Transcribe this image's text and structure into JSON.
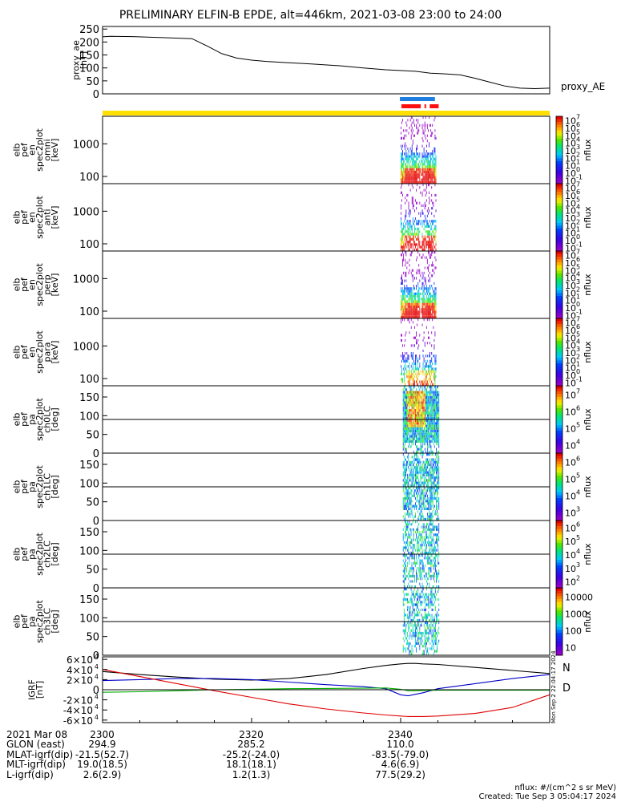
{
  "title": "PRELIMINARY ELFIN-B EPDE, alt=446km, 2021-03-08 23:00 to 24:00",
  "colors": {
    "ae_line": "#000000",
    "bar_yellow": "#ffe000",
    "bar_blue": "#1f7fe0",
    "bar_red": "#ff1010",
    "bx": "#0000c8",
    "by": "#00b000",
    "bz": "#e00000",
    "bt": "#000000"
  },
  "chart_data": [
    {
      "id": "proxy_ae",
      "type": "line",
      "ylabel_lines": [
        "proxy_ae",
        "[nT]"
      ],
      "series_label": "proxy_AE",
      "ylim": [
        0,
        260
      ],
      "yticks": [
        "0",
        "50",
        "100",
        "150",
        "200",
        "250"
      ],
      "x_minutes": [
        0,
        1,
        4,
        8,
        12,
        14,
        16,
        18,
        20,
        22,
        25,
        28,
        32,
        35,
        38,
        42,
        44,
        46,
        48,
        50,
        52,
        54,
        56,
        58,
        60
      ],
      "values": [
        220,
        222,
        221,
        217,
        213,
        185,
        155,
        138,
        130,
        125,
        120,
        115,
        108,
        100,
        93,
        87,
        80,
        77,
        73,
        60,
        45,
        30,
        22,
        20,
        22
      ]
    },
    {
      "id": "science_bars",
      "type": "bar",
      "yellow_span_minutes": [
        0,
        60
      ],
      "blue_span_minutes": [
        39.9,
        44.6
      ],
      "red_spans_minutes": [
        [
          40.1,
          42.7
        ],
        [
          43.2,
          43.3
        ],
        [
          43.9,
          45.1
        ]
      ]
    },
    {
      "id": "en_omni",
      "type": "heatmap",
      "ylabel_lines": [
        "elb",
        "pef",
        "en",
        "spec2plot",
        "omni",
        "[keV]"
      ],
      "yscale": "log",
      "ylim": [
        60,
        7000
      ],
      "yticks": [
        "100",
        "1000"
      ],
      "clabel": "nflux",
      "cticks": [
        "10",
        "10",
        "10",
        "10",
        "10",
        "10",
        "10",
        "10",
        "10"
      ],
      "cexp": [
        "-1",
        "0",
        "1",
        "2",
        "3",
        "4",
        "5",
        "6",
        "7"
      ],
      "crange": [
        -1,
        7
      ],
      "active_minutes": [
        40.0,
        44.8
      ],
      "lc_lines": []
    },
    {
      "id": "en_anti",
      "type": "heatmap",
      "ylabel_lines": [
        "elb",
        "pef",
        "en",
        "spec2plot",
        "anti",
        "[keV]"
      ],
      "yscale": "log",
      "ylim": [
        60,
        7000
      ],
      "yticks": [
        "100",
        "1000"
      ],
      "clabel": "nflux",
      "cticks": [
        "10",
        "10",
        "10",
        "10",
        "10",
        "10",
        "10",
        "10",
        "10"
      ],
      "cexp": [
        "-1",
        "0",
        "1",
        "2",
        "3",
        "4",
        "5",
        "6",
        "7"
      ],
      "crange": [
        -1,
        7
      ],
      "active_minutes": [
        40.0,
        44.8
      ],
      "lc_lines": []
    },
    {
      "id": "en_perp",
      "type": "heatmap",
      "ylabel_lines": [
        "elb",
        "pef",
        "en",
        "spec2plot",
        "perp",
        "[keV]"
      ],
      "yscale": "log",
      "ylim": [
        60,
        7000
      ],
      "yticks": [
        "100",
        "1000"
      ],
      "clabel": "nflux",
      "cticks": [
        "10",
        "10",
        "10",
        "10",
        "10",
        "10",
        "10",
        "10",
        "10"
      ],
      "cexp": [
        "-1",
        "0",
        "1",
        "2",
        "3",
        "4",
        "5",
        "6",
        "7"
      ],
      "crange": [
        -1,
        7
      ],
      "active_minutes": [
        40.0,
        44.8
      ],
      "lc_lines": []
    },
    {
      "id": "en_para",
      "type": "heatmap",
      "ylabel_lines": [
        "elb",
        "pef",
        "en",
        "spec2plot",
        "para",
        "[keV]"
      ],
      "yscale": "log",
      "ylim": [
        60,
        7000
      ],
      "yticks": [
        "100",
        "1000"
      ],
      "clabel": "nflux",
      "cticks": [
        "10",
        "10",
        "10",
        "10",
        "10",
        "10",
        "10",
        "10",
        "10"
      ],
      "cexp": [
        "-1",
        "0",
        "1",
        "2",
        "3",
        "4",
        "5",
        "6",
        "7"
      ],
      "crange": [
        -1,
        7
      ],
      "active_minutes": [
        40.0,
        44.8
      ],
      "lc_lines": []
    },
    {
      "id": "pa_ch0",
      "type": "heatmap",
      "ylabel_lines": [
        "elb",
        "pef",
        "pa",
        "spec2plot",
        "ch0LC",
        "[deg]"
      ],
      "yscale": "linear",
      "ylim": [
        0,
        180
      ],
      "yticks": [
        "0",
        "50",
        "100",
        "150"
      ],
      "clabel": "nflux",
      "cticks": [
        "10",
        "10",
        "10",
        "10"
      ],
      "cexp": [
        "4",
        "5",
        "6",
        "7"
      ],
      "crange": [
        3.5,
        7
      ],
      "active_minutes": [
        40.3,
        45.2
      ],
      "lc_lines": [
        90
      ]
    },
    {
      "id": "pa_ch1",
      "type": "heatmap",
      "ylabel_lines": [
        "elb",
        "pef",
        "pa",
        "spec2plot",
        "ch1LC",
        "[deg]"
      ],
      "yscale": "linear",
      "ylim": [
        0,
        180
      ],
      "yticks": [
        "0",
        "50",
        "100",
        "150"
      ],
      "clabel": "nflux",
      "cticks": [
        "10",
        "10",
        "10",
        "10"
      ],
      "cexp": [
        "3",
        "4",
        "5",
        "6"
      ],
      "crange": [
        2.8,
        6.3
      ],
      "active_minutes": [
        40.3,
        45.2
      ],
      "lc_lines": [
        90
      ]
    },
    {
      "id": "pa_ch2",
      "type": "heatmap",
      "ylabel_lines": [
        "elb",
        "pef",
        "pa",
        "spec2plot",
        "ch2LC",
        "[deg]"
      ],
      "yscale": "linear",
      "ylim": [
        0,
        180
      ],
      "yticks": [
        "0",
        "50",
        "100",
        "150"
      ],
      "clabel": "nflux",
      "cticks": [
        "10",
        "10",
        "10",
        "10",
        "10"
      ],
      "cexp": [
        "2",
        "3",
        "4",
        "5",
        "6"
      ],
      "crange": [
        1.8,
        6.2
      ],
      "active_minutes": [
        40.3,
        45.2
      ],
      "lc_lines": [
        90
      ]
    },
    {
      "id": "pa_ch3",
      "type": "heatmap",
      "ylabel_lines": [
        "elb",
        "pef",
        "pa",
        "spec2plot",
        "ch3LC",
        "[deg]"
      ],
      "yscale": "linear",
      "ylim": [
        0,
        180
      ],
      "yticks": [
        "0",
        "50",
        "100",
        "150"
      ],
      "clabel": "nflux",
      "cticks": [
        "10",
        "100",
        "1000",
        "10000"
      ],
      "cexp": [
        "",
        "",
        "",
        ""
      ],
      "crange": [
        1,
        4.2
      ],
      "active_minutes": [
        40.3,
        45.2
      ],
      "lc_lines": [
        90
      ]
    },
    {
      "id": "igrf",
      "type": "line",
      "ylabel_lines": [
        "IGRF",
        "[nT]"
      ],
      "ylim": [
        -65000,
        65000
      ],
      "yticks": [
        "-6×10",
        "-4×10",
        "-2×10",
        "0",
        "2×10",
        "4×10",
        "6×10"
      ],
      "ytick_vals": [
        -60000,
        -40000,
        -20000,
        0,
        20000,
        40000,
        60000
      ],
      "ytick_exp": "4",
      "labels": {
        "n": "N",
        "d": "D"
      },
      "x_minutes": [
        0,
        5,
        10,
        15,
        20,
        25,
        30,
        35,
        38,
        40,
        41,
        42,
        43,
        45,
        50,
        55,
        60
      ],
      "series": [
        {
          "key": "bt",
          "values": [
            36000,
            30000,
            25000,
            21000,
            19000,
            22000,
            30000,
            42000,
            48000,
            51000,
            52000,
            52000,
            51000,
            50000,
            44000,
            38000,
            32000
          ]
        },
        {
          "key": "bx",
          "values": [
            18000,
            20000,
            22000,
            22000,
            20000,
            15000,
            10000,
            6000,
            2000,
            -10000,
            -12000,
            -9000,
            -6000,
            2000,
            12000,
            22000,
            30000
          ]
        },
        {
          "key": "by",
          "values": [
            -5000,
            -4000,
            -2000,
            0,
            1000,
            2000,
            2500,
            3000,
            3500,
            1000,
            -2000,
            -2000,
            -1500,
            -1000,
            -1000,
            -1000,
            -1000
          ]
        },
        {
          "key": "bz",
          "values": [
            40000,
            26000,
            12000,
            -2000,
            -15000,
            -28000,
            -38000,
            -46000,
            -50000,
            -52000,
            -53000,
            -53000,
            -53000,
            -52000,
            -47000,
            -35000,
            -10000
          ]
        }
      ]
    }
  ],
  "xaxis": {
    "rows": [
      {
        "label": "2021 Mar 08",
        "values": [
          "2300",
          "2320",
          "2340"
        ]
      },
      {
        "label": "GLON (east)",
        "values": [
          "294.9",
          "285.2",
          "110.0"
        ]
      },
      {
        "label": "MLAT-igrf(dip)",
        "values": [
          "-21.5(52.7)",
          "-25.2(-24.0)",
          "-83.5(-79.0)"
        ]
      },
      {
        "label": "MLT-igrf(dip)",
        "values": [
          "19.0(18.5)",
          "18.1(18.1)",
          "4.6(6.9)"
        ]
      },
      {
        "label": "L-igrf(dip)",
        "values": [
          "2.6(2.9)",
          "1.2(1.3)",
          "77.5(29.2)"
        ]
      }
    ],
    "tick_minutes": [
      0,
      20,
      40
    ]
  },
  "footer": {
    "units": "nflux: #/(cm^2 s sr MeV)",
    "created": "Created: Tue Sep  3 05:04:17 2024",
    "side_stamp": "Mon Sep  2 22:04:17 2024"
  }
}
